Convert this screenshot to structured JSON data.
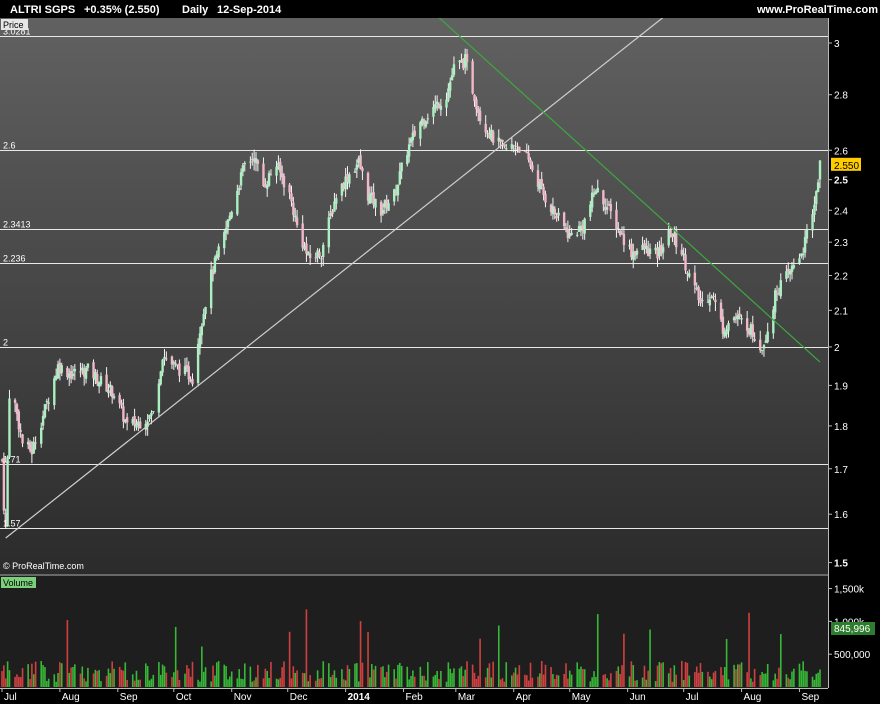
{
  "header": {
    "instrument": "ALTRI SGPS",
    "change": "+0.35% (2.550)",
    "period": "Daily",
    "date": "12-Sep-2014",
    "source": "www.ProRealTime.com"
  },
  "watermark": "© ProRealTime.com",
  "price_panel_label": "Price",
  "volume_panel_label": "Volume",
  "last_price_badge": "2.550",
  "last_volume_badge": "845,996",
  "colors": {
    "background_top": "#616161",
    "background_bottom": "#2b2b2b",
    "up_candle": "#aaf0c0",
    "down_candle": "#f0b8c8",
    "wick": "#f4f4f4",
    "level_line": "#e8e8e8",
    "trendline_up": "#cfcfcf",
    "trendline_down": "#3ea83e",
    "volume_up": "#37b837",
    "volume_down": "#d04040",
    "badge_price": "#ffcc00",
    "badge_volume": "#2e7d2e"
  },
  "chart_data": {
    "type": "candlestick",
    "title": "ALTRI SGPS",
    "ylabel": "Price",
    "yscale": "log",
    "ylim": [
      1.5,
      3.05
    ],
    "y_ticks": [
      "1.5",
      "1.6",
      "1.7",
      "1.8",
      "1.9",
      "2",
      "2.1",
      "2.2",
      "2.3",
      "2.4",
      "2.5",
      "2.6",
      "2.8",
      "3"
    ],
    "x_range": [
      "2013-07-01",
      "2014-09-12"
    ],
    "x_labels": [
      {
        "date": "2013-07-01",
        "text": "Jul"
      },
      {
        "date": "2013-08-01",
        "text": "Aug"
      },
      {
        "date": "2013-09-01",
        "text": "Sep"
      },
      {
        "date": "2013-10-01",
        "text": "Oct"
      },
      {
        "date": "2013-11-01",
        "text": "Nov"
      },
      {
        "date": "2013-12-01",
        "text": "Dec"
      },
      {
        "date": "2014-01-01",
        "text": "2014"
      },
      {
        "date": "2014-02-01",
        "text": "Feb"
      },
      {
        "date": "2014-03-01",
        "text": "Mar"
      },
      {
        "date": "2014-04-01",
        "text": "Apr"
      },
      {
        "date": "2014-05-01",
        "text": "May"
      },
      {
        "date": "2014-06-01",
        "text": "Jun"
      },
      {
        "date": "2014-07-01",
        "text": "Jul"
      },
      {
        "date": "2014-08-01",
        "text": "Aug"
      },
      {
        "date": "2014-09-01",
        "text": "Sep"
      }
    ],
    "horizontal_levels": [
      {
        "value": 3.0281,
        "label": "3.0281"
      },
      {
        "value": 2.6,
        "label": "2.6"
      },
      {
        "value": 2.3413,
        "label": "2.3413"
      },
      {
        "value": 2.236,
        "label": "2.236"
      },
      {
        "value": 2.0,
        "label": "2"
      },
      {
        "value": 1.71,
        "label": "1.71"
      },
      {
        "value": 1.57,
        "label": "1.57"
      }
    ],
    "trendlines": [
      {
        "name": "support",
        "from": {
          "date": "2013-07-03",
          "value": 1.55
        },
        "to": {
          "date": "2014-03-28",
          "value": 2.63
        },
        "extend": "right"
      },
      {
        "name": "resistance",
        "from": {
          "date": "2014-03-07",
          "value": 3.0
        },
        "to": {
          "date": "2014-09-12",
          "value": 1.96
        },
        "extend": "left"
      }
    ],
    "price_anchors": [
      [
        "2013-07-01",
        1.72
      ],
      [
        "2013-07-02",
        1.62
      ],
      [
        "2013-07-03",
        1.57
      ],
      [
        "2013-07-05",
        1.88
      ],
      [
        "2013-07-08",
        1.85
      ],
      [
        "2013-07-12",
        1.76
      ],
      [
        "2013-07-17",
        1.74
      ],
      [
        "2013-07-24",
        1.84
      ],
      [
        "2013-07-31",
        1.95
      ],
      [
        "2013-08-07",
        1.93
      ],
      [
        "2013-08-16",
        1.94
      ],
      [
        "2013-08-23",
        1.91
      ],
      [
        "2013-08-30",
        1.88
      ],
      [
        "2013-09-06",
        1.8
      ],
      [
        "2013-09-13",
        1.81
      ],
      [
        "2013-09-20",
        1.83
      ],
      [
        "2013-09-25",
        1.98
      ],
      [
        "2013-10-01",
        1.95
      ],
      [
        "2013-10-08",
        1.93
      ],
      [
        "2013-10-11",
        1.92
      ],
      [
        "2013-10-15",
        2.05
      ],
      [
        "2013-10-21",
        2.2
      ],
      [
        "2013-10-28",
        2.32
      ],
      [
        "2013-11-04",
        2.47
      ],
      [
        "2013-11-08",
        2.55
      ],
      [
        "2013-11-13",
        2.58
      ],
      [
        "2013-11-18",
        2.48
      ],
      [
        "2013-11-25",
        2.55
      ],
      [
        "2013-12-02",
        2.45
      ],
      [
        "2013-12-06",
        2.35
      ],
      [
        "2013-12-12",
        2.25
      ],
      [
        "2013-12-19",
        2.27
      ],
      [
        "2013-12-27",
        2.45
      ],
      [
        "2014-01-03",
        2.52
      ],
      [
        "2014-01-08",
        2.56
      ],
      [
        "2014-01-13",
        2.45
      ],
      [
        "2014-01-20",
        2.4
      ],
      [
        "2014-01-27",
        2.45
      ],
      [
        "2014-02-03",
        2.6
      ],
      [
        "2014-02-10",
        2.7
      ],
      [
        "2014-02-17",
        2.75
      ],
      [
        "2014-02-24",
        2.8
      ],
      [
        "2014-02-28",
        2.9
      ],
      [
        "2014-03-06",
        2.93
      ],
      [
        "2014-03-10",
        2.82
      ],
      [
        "2014-03-14",
        2.72
      ],
      [
        "2014-03-20",
        2.65
      ],
      [
        "2014-03-27",
        2.6
      ],
      [
        "2014-04-03",
        2.62
      ],
      [
        "2014-04-10",
        2.55
      ],
      [
        "2014-04-17",
        2.45
      ],
      [
        "2014-04-24",
        2.38
      ],
      [
        "2014-05-01",
        2.32
      ],
      [
        "2014-05-08",
        2.35
      ],
      [
        "2014-05-15",
        2.47
      ],
      [
        "2014-05-22",
        2.4
      ],
      [
        "2014-05-29",
        2.32
      ],
      [
        "2014-06-03",
        2.27
      ],
      [
        "2014-06-10",
        2.28
      ],
      [
        "2014-06-17",
        2.26
      ],
      [
        "2014-06-24",
        2.33
      ],
      [
        "2014-06-30",
        2.27
      ],
      [
        "2014-07-04",
        2.2
      ],
      [
        "2014-07-10",
        2.12
      ],
      [
        "2014-07-16",
        2.15
      ],
      [
        "2014-07-22",
        2.05
      ],
      [
        "2014-07-28",
        2.08
      ],
      [
        "2014-08-04",
        2.06
      ],
      [
        "2014-08-08",
        2.03
      ],
      [
        "2014-08-12",
        2.0
      ],
      [
        "2014-08-15",
        2.05
      ],
      [
        "2014-08-20",
        2.16
      ],
      [
        "2014-08-26",
        2.2
      ],
      [
        "2014-08-29",
        2.23
      ],
      [
        "2014-09-03",
        2.28
      ],
      [
        "2014-09-08",
        2.38
      ],
      [
        "2014-09-12",
        2.55
      ]
    ],
    "volume": {
      "ylim": [
        0,
        1600000
      ],
      "y_ticks": [
        "500,000",
        "1,000k",
        "1,500k"
      ],
      "last_value": 845996
    }
  }
}
